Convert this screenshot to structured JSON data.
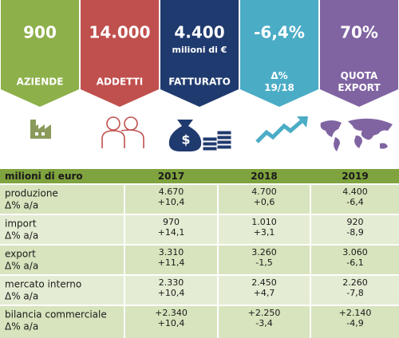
{
  "kpis": [
    {
      "value": "900",
      "label": [
        "AZIENDE"
      ]
    },
    {
      "value": "14.000",
      "label": [
        "ADDETTI"
      ]
    },
    {
      "value": "4.400",
      "unit": "milioni di €",
      "label": [
        "FATTURATO"
      ]
    },
    {
      "value": "-6,4%",
      "label": [
        "Δ%",
        "19/18"
      ]
    },
    {
      "value": "70%",
      "label": [
        "QUOTA",
        "EXPORT"
      ]
    }
  ],
  "table": {
    "header": [
      "milioni di euro",
      "2017",
      "2018",
      "2019"
    ],
    "rows": [
      {
        "label": "produzione",
        "sublabel": "Δ% a/a",
        "cells": [
          [
            "4.670",
            "+10,4"
          ],
          [
            "4.700",
            "+0,6"
          ],
          [
            "4.400",
            "-6,4"
          ]
        ]
      },
      {
        "label": "import",
        "sublabel": "Δ% a/a",
        "cells": [
          [
            "970",
            "+14,1"
          ],
          [
            "1.010",
            "+3,1"
          ],
          [
            "920",
            "-8,9"
          ]
        ]
      },
      {
        "label": "export",
        "sublabel": "Δ% a/a",
        "cells": [
          [
            "3.310",
            "+11,4"
          ],
          [
            "3.260",
            "-1,5"
          ],
          [
            "3.060",
            "-6,1"
          ]
        ]
      },
      {
        "label": "mercato interno",
        "sublabel": "Δ% a/a",
        "cells": [
          [
            "2.330",
            "+10,4"
          ],
          [
            "2.450",
            "+4,7"
          ],
          [
            "2.260",
            "-7,8"
          ]
        ]
      },
      {
        "label": "bilancia commerciale",
        "sublabel": "Δ% a/a",
        "cells": [
          [
            "+2.340",
            "+10,4"
          ],
          [
            "+2.250",
            "-3,4"
          ],
          [
            "+2.140",
            "-4,9"
          ]
        ]
      }
    ]
  }
}
